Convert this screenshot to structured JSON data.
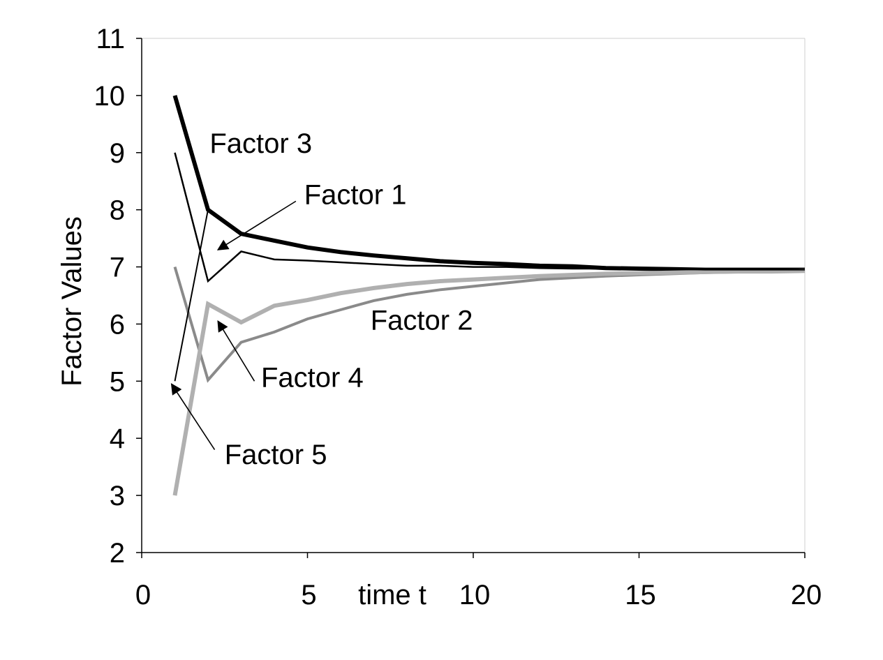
{
  "chart_data": {
    "type": "line",
    "xlabel": "time t",
    "ylabel": "Factor Values",
    "xlim": [
      0,
      20
    ],
    "ylim": [
      2,
      11
    ],
    "xticks": [
      0,
      5,
      10,
      15,
      20
    ],
    "yticks": [
      2,
      3,
      4,
      5,
      6,
      7,
      8,
      9,
      10,
      11
    ],
    "grid": false,
    "x": [
      1,
      2,
      3,
      4,
      5,
      6,
      7,
      8,
      9,
      10,
      11,
      12,
      13,
      14,
      15,
      16,
      17,
      18,
      19,
      20
    ],
    "series": [
      {
        "name": "Factor 1",
        "color": "#000000",
        "width": 2.5,
        "values": [
          9,
          6.75,
          7.27,
          7.13,
          7.11,
          7.08,
          7.05,
          7.02,
          7.02,
          7.0,
          7.0,
          6.98,
          6.97,
          6.97,
          6.96,
          6.96,
          6.95,
          6.95,
          6.95,
          6.95
        ]
      },
      {
        "name": "Factor 2",
        "color": "#8a8a8a",
        "width": 4,
        "values": [
          7,
          5.02,
          5.68,
          5.86,
          6.09,
          6.25,
          6.41,
          6.52,
          6.6,
          6.66,
          6.72,
          6.78,
          6.81,
          6.84,
          6.86,
          6.88,
          6.9,
          6.91,
          6.92,
          6.93
        ]
      },
      {
        "name": "Factor 3",
        "color": "#000000",
        "width": 6,
        "values": [
          10,
          8.0,
          7.58,
          7.46,
          7.34,
          7.26,
          7.2,
          7.15,
          7.1,
          7.07,
          7.05,
          7.02,
          7.01,
          6.98,
          6.97,
          6.96,
          6.95,
          6.95,
          6.95,
          6.95
        ]
      },
      {
        "name": "Factor 4",
        "color": "#b0b0b0",
        "width": 6,
        "values": [
          3,
          6.35,
          6.03,
          6.32,
          6.42,
          6.54,
          6.63,
          6.7,
          6.75,
          6.78,
          6.81,
          6.84,
          6.86,
          6.88,
          6.89,
          6.9,
          6.91,
          6.92,
          6.92,
          6.93
        ]
      },
      {
        "name": "Factor 5",
        "color": "#000000",
        "width": 2,
        "values": [
          5,
          8.0,
          7.58,
          7.46,
          7.34,
          7.26,
          7.2,
          7.15,
          7.1,
          7.07,
          7.05,
          7.02,
          7.01,
          6.98,
          6.97,
          6.96,
          6.95,
          6.95,
          6.95,
          6.95
        ]
      }
    ],
    "annotations": [
      {
        "text": "Factor 3",
        "series": "Factor 3",
        "label_x": 2.05,
        "label_y": 9.0,
        "arrow": false
      },
      {
        "text": "Factor 1",
        "series": "Factor 1",
        "label_x": 4.9,
        "label_y": 8.1,
        "arrow": true,
        "from": [
          4.65,
          8.15
        ],
        "to": [
          2.3,
          7.3
        ]
      },
      {
        "text": "Factor 2",
        "series": "Factor 2",
        "label_x": 6.9,
        "label_y": 5.9,
        "arrow": false
      },
      {
        "text": "Factor 4",
        "series": "Factor 4",
        "label_x": 3.6,
        "label_y": 4.9,
        "arrow": true,
        "from": [
          3.4,
          5.0
        ],
        "to": [
          2.3,
          6.05
        ]
      },
      {
        "text": "Factor 5",
        "series": "Factor 5",
        "label_x": 2.5,
        "label_y": 3.55,
        "arrow": true,
        "from": [
          2.2,
          3.8
        ],
        "to": [
          0.9,
          4.95
        ]
      }
    ]
  }
}
